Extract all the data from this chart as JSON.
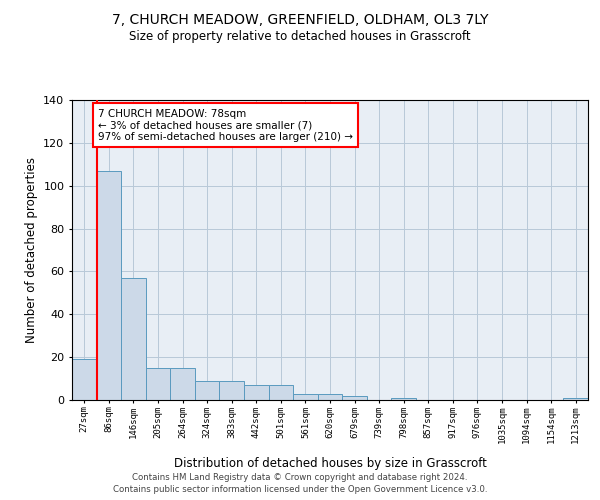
{
  "title": "7, CHURCH MEADOW, GREENFIELD, OLDHAM, OL3 7LY",
  "subtitle": "Size of property relative to detached houses in Grasscroft",
  "xlabel": "Distribution of detached houses by size in Grasscroft",
  "ylabel": "Number of detached properties",
  "bar_values": [
    19,
    107,
    57,
    15,
    15,
    9,
    9,
    7,
    7,
    3,
    3,
    2,
    0,
    1,
    0,
    0,
    0,
    0,
    0,
    0,
    1
  ],
  "bin_labels": [
    "27sqm",
    "86sqm",
    "146sqm",
    "205sqm",
    "264sqm",
    "324sqm",
    "383sqm",
    "442sqm",
    "501sqm",
    "561sqm",
    "620sqm",
    "679sqm",
    "739sqm",
    "798sqm",
    "857sqm",
    "917sqm",
    "976sqm",
    "1035sqm",
    "1094sqm",
    "1154sqm",
    "1213sqm"
  ],
  "bar_color": "#ccd9e8",
  "bar_edge_color": "#5a9abf",
  "grid_color": "#b8c8d8",
  "bg_color": "#e8eef5",
  "red_line_x": 0.5,
  "annotation_text": "7 CHURCH MEADOW: 78sqm\n← 3% of detached houses are smaller (7)\n97% of semi-detached houses are larger (210) →",
  "annotation_box_color": "white",
  "annotation_box_edge": "red",
  "footer": "Contains HM Land Registry data © Crown copyright and database right 2024.\nContains public sector information licensed under the Open Government Licence v3.0.",
  "ylim": [
    0,
    140
  ],
  "yticks": [
    0,
    20,
    40,
    60,
    80,
    100,
    120,
    140
  ]
}
